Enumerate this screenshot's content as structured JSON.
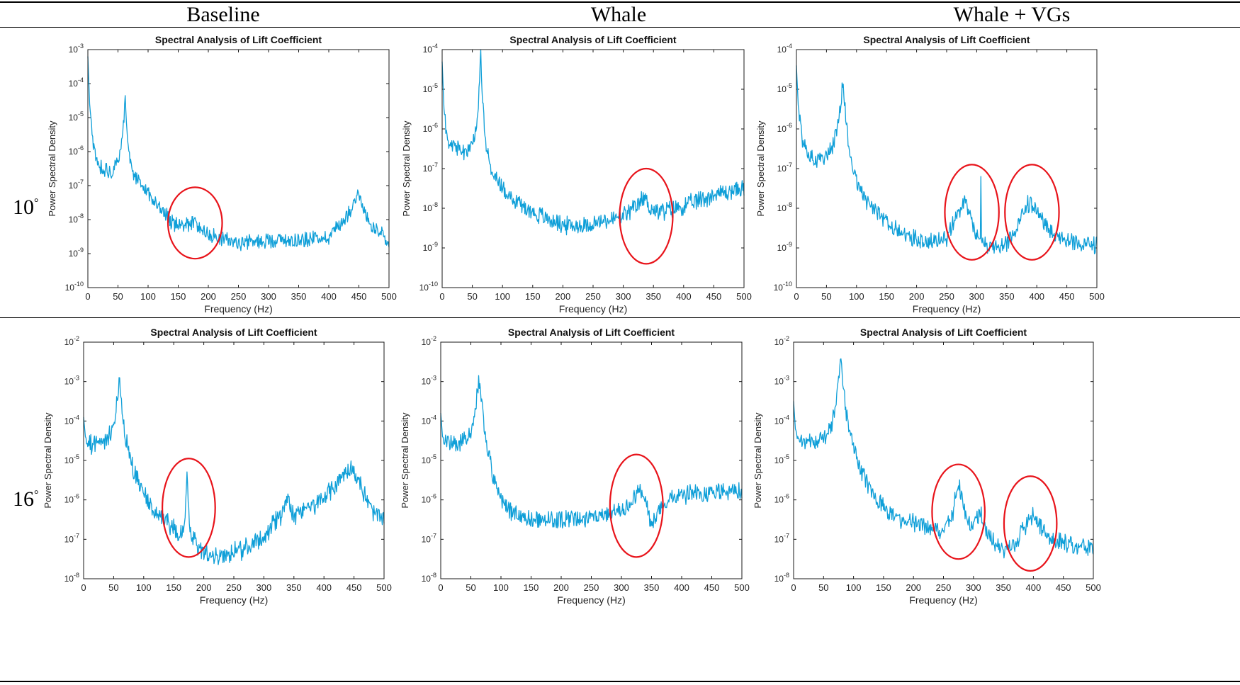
{
  "columns": [
    "Baseline",
    "Whale",
    "Whale + VGs"
  ],
  "rows": [
    "10",
    "16"
  ],
  "degree_symbol": "°",
  "colors": {
    "series": "#0f9fd8",
    "highlight": "#e8141b",
    "axes": "#1a1a1a"
  },
  "chart_data": [
    {
      "type": "line",
      "panel": "10deg-baseline",
      "title": "Spectral Analysis of Lift Coefficient",
      "xlabel": "Frequency (Hz)",
      "ylabel": "Power Spectral Density",
      "xlim": [
        0,
        500
      ],
      "ylim_exp": [
        -10,
        -3
      ],
      "yscale": "log",
      "xticks": [
        0,
        50,
        100,
        150,
        200,
        250,
        300,
        350,
        400,
        450,
        500
      ],
      "series_name": "PSD",
      "profile_log10": [
        [
          0,
          -3.2
        ],
        [
          3,
          -4.6
        ],
        [
          8,
          -5.7
        ],
        [
          15,
          -6.3
        ],
        [
          25,
          -6.5
        ],
        [
          40,
          -6.6
        ],
        [
          52,
          -6.3
        ],
        [
          57,
          -5.6
        ],
        [
          60,
          -5.0
        ],
        [
          62,
          -4.3
        ],
        [
          64,
          -5.0
        ],
        [
          67,
          -5.8
        ],
        [
          72,
          -6.5
        ],
        [
          85,
          -6.9
        ],
        [
          100,
          -7.2
        ],
        [
          120,
          -7.7
        ],
        [
          140,
          -8.1
        ],
        [
          160,
          -8.2
        ],
        [
          175,
          -8.1
        ],
        [
          190,
          -8.3
        ],
        [
          210,
          -8.5
        ],
        [
          250,
          -8.7
        ],
        [
          300,
          -8.6
        ],
        [
          350,
          -8.6
        ],
        [
          400,
          -8.5
        ],
        [
          425,
          -8.0
        ],
        [
          440,
          -7.6
        ],
        [
          448,
          -7.1
        ],
        [
          455,
          -7.6
        ],
        [
          470,
          -8.2
        ],
        [
          490,
          -8.5
        ],
        [
          500,
          -8.8
        ]
      ],
      "noise": 0.2,
      "seed": 11,
      "highlights": [
        {
          "f": 178,
          "exp": -8.1,
          "rf": 45,
          "rexp": 1.05
        }
      ]
    },
    {
      "type": "line",
      "panel": "10deg-whale",
      "title": "Spectral Analysis of Lift Coefficient",
      "xlabel": "Frequency (Hz)",
      "ylabel": "Power Spectral Density",
      "xlim": [
        0,
        500
      ],
      "ylim_exp": [
        -10,
        -4
      ],
      "yscale": "log",
      "xticks": [
        0,
        50,
        100,
        150,
        200,
        250,
        300,
        350,
        400,
        450,
        500
      ],
      "series_name": "PSD",
      "profile_log10": [
        [
          0,
          -4.3
        ],
        [
          3,
          -5.5
        ],
        [
          8,
          -6.2
        ],
        [
          15,
          -6.4
        ],
        [
          30,
          -6.6
        ],
        [
          45,
          -6.5
        ],
        [
          55,
          -6.2
        ],
        [
          60,
          -5.4
        ],
        [
          64,
          -4.1
        ],
        [
          67,
          -5.3
        ],
        [
          72,
          -6.3
        ],
        [
          80,
          -7.0
        ],
        [
          95,
          -7.4
        ],
        [
          120,
          -7.8
        ],
        [
          150,
          -8.1
        ],
        [
          180,
          -8.3
        ],
        [
          210,
          -8.45
        ],
        [
          250,
          -8.4
        ],
        [
          300,
          -8.2
        ],
        [
          320,
          -8.0
        ],
        [
          335,
          -7.7
        ],
        [
          345,
          -8.0
        ],
        [
          360,
          -8.1
        ],
        [
          400,
          -7.95
        ],
        [
          450,
          -7.65
        ],
        [
          500,
          -7.5
        ]
      ],
      "noise": 0.2,
      "seed": 23,
      "highlights": [
        {
          "f": 338,
          "exp": -8.2,
          "rf": 44,
          "rexp": 1.2
        }
      ]
    },
    {
      "type": "line",
      "panel": "10deg-whale-vgs",
      "title": "Spectral Analysis of Lift Coefficient",
      "xlabel": "Frequency (Hz)",
      "ylabel": "Power Spectral Density",
      "xlim": [
        0,
        500
      ],
      "ylim_exp": [
        -10,
        -4
      ],
      "yscale": "log",
      "xticks": [
        0,
        50,
        100,
        150,
        200,
        250,
        300,
        350,
        400,
        450,
        500
      ],
      "series_name": "PSD",
      "profile_log10": [
        [
          0,
          -4.4
        ],
        [
          3,
          -5.4
        ],
        [
          10,
          -6.3
        ],
        [
          20,
          -6.7
        ],
        [
          40,
          -6.8
        ],
        [
          55,
          -6.6
        ],
        [
          65,
          -6.2
        ],
        [
          72,
          -5.6
        ],
        [
          77,
          -4.8
        ],
        [
          80,
          -5.3
        ],
        [
          84,
          -6.0
        ],
        [
          92,
          -6.9
        ],
        [
          100,
          -7.3
        ],
        [
          120,
          -7.9
        ],
        [
          150,
          -8.4
        ],
        [
          180,
          -8.7
        ],
        [
          220,
          -8.85
        ],
        [
          250,
          -8.8
        ],
        [
          270,
          -8.1
        ],
        [
          280,
          -7.8
        ],
        [
          292,
          -8.4
        ],
        [
          305,
          -8.9
        ],
        [
          330,
          -9.0
        ],
        [
          350,
          -8.95
        ],
        [
          370,
          -8.4
        ],
        [
          385,
          -7.9
        ],
        [
          395,
          -8.0
        ],
        [
          410,
          -8.3
        ],
        [
          430,
          -8.7
        ],
        [
          460,
          -8.9
        ],
        [
          500,
          -8.95
        ]
      ],
      "noise": 0.2,
      "seed": 37,
      "spikes": [
        {
          "f": 307,
          "exp": -7.2
        }
      ],
      "highlights": [
        {
          "f": 292,
          "exp": -8.1,
          "rf": 45,
          "rexp": 1.2
        },
        {
          "f": 392,
          "exp": -8.1,
          "rf": 45,
          "rexp": 1.2
        }
      ]
    },
    {
      "type": "line",
      "panel": "16deg-baseline",
      "title": "Spectral Analysis of Lift Coefficient",
      "xlabel": "Frequency (Hz)",
      "ylabel": "Power Spectral Density",
      "xlim": [
        0,
        500
      ],
      "ylim_exp": [
        -8,
        -2
      ],
      "yscale": "log",
      "xticks": [
        0,
        50,
        100,
        150,
        200,
        250,
        300,
        350,
        400,
        450,
        500
      ],
      "series_name": "PSD",
      "profile_log10": [
        [
          0,
          -3.9
        ],
        [
          3,
          -4.4
        ],
        [
          10,
          -4.6
        ],
        [
          25,
          -4.55
        ],
        [
          40,
          -4.45
        ],
        [
          50,
          -4.2
        ],
        [
          56,
          -3.5
        ],
        [
          60,
          -2.85
        ],
        [
          63,
          -3.5
        ],
        [
          68,
          -4.3
        ],
        [
          75,
          -4.8
        ],
        [
          85,
          -5.3
        ],
        [
          100,
          -5.9
        ],
        [
          120,
          -6.3
        ],
        [
          140,
          -6.6
        ],
        [
          160,
          -6.9
        ],
        [
          168,
          -6.6
        ],
        [
          172,
          -5.3
        ],
        [
          176,
          -6.7
        ],
        [
          190,
          -7.2
        ],
        [
          220,
          -7.45
        ],
        [
          260,
          -7.3
        ],
        [
          300,
          -6.9
        ],
        [
          330,
          -6.35
        ],
        [
          340,
          -6.0
        ],
        [
          350,
          -6.4
        ],
        [
          380,
          -6.2
        ],
        [
          410,
          -5.8
        ],
        [
          430,
          -5.4
        ],
        [
          445,
          -5.15
        ],
        [
          460,
          -5.6
        ],
        [
          480,
          -6.3
        ],
        [
          500,
          -6.5
        ]
      ],
      "noise": 0.22,
      "seed": 41,
      "highlights": [
        {
          "f": 175,
          "exp": -6.2,
          "rf": 44,
          "rexp": 1.25
        }
      ]
    },
    {
      "type": "line",
      "panel": "16deg-whale",
      "title": "Spectral Analysis of Lift Coefficient",
      "xlabel": "Frequency (Hz)",
      "ylabel": "Power Spectral Density",
      "xlim": [
        0,
        500
      ],
      "ylim_exp": [
        -8,
        -2
      ],
      "yscale": "log",
      "xticks": [
        0,
        50,
        100,
        150,
        200,
        250,
        300,
        350,
        400,
        450,
        500
      ],
      "series_name": "PSD",
      "profile_log10": [
        [
          0,
          -3.8
        ],
        [
          3,
          -4.4
        ],
        [
          10,
          -4.5
        ],
        [
          30,
          -4.55
        ],
        [
          45,
          -4.5
        ],
        [
          55,
          -4.0
        ],
        [
          60,
          -3.3
        ],
        [
          64,
          -2.95
        ],
        [
          68,
          -3.5
        ],
        [
          75,
          -4.5
        ],
        [
          85,
          -5.3
        ],
        [
          100,
          -6.0
        ],
        [
          120,
          -6.35
        ],
        [
          150,
          -6.5
        ],
        [
          200,
          -6.5
        ],
        [
          250,
          -6.45
        ],
        [
          280,
          -6.3
        ],
        [
          300,
          -6.35
        ],
        [
          320,
          -6.0
        ],
        [
          330,
          -5.7
        ],
        [
          340,
          -6.1
        ],
        [
          350,
          -6.6
        ],
        [
          360,
          -6.3
        ],
        [
          380,
          -5.95
        ],
        [
          420,
          -5.85
        ],
        [
          460,
          -5.8
        ],
        [
          500,
          -5.8
        ]
      ],
      "noise": 0.2,
      "seed": 53,
      "highlights": [
        {
          "f": 325,
          "exp": -6.15,
          "rf": 44,
          "rexp": 1.3
        }
      ]
    },
    {
      "type": "line",
      "panel": "16deg-whale-vgs",
      "title": "Spectral Analysis of Lift Coefficient",
      "xlabel": "Frequency (Hz)",
      "ylabel": "Power Spectral Density",
      "xlim": [
        0,
        500
      ],
      "ylim_exp": [
        -8,
        -2
      ],
      "yscale": "log",
      "xticks": [
        0,
        50,
        100,
        150,
        200,
        250,
        300,
        350,
        400,
        450,
        500
      ],
      "series_name": "PSD",
      "profile_log10": [
        [
          0,
          -3.5
        ],
        [
          3,
          -4.2
        ],
        [
          10,
          -4.5
        ],
        [
          30,
          -4.55
        ],
        [
          50,
          -4.4
        ],
        [
          62,
          -4.2
        ],
        [
          70,
          -3.7
        ],
        [
          75,
          -2.9
        ],
        [
          78,
          -2.4
        ],
        [
          81,
          -2.9
        ],
        [
          86,
          -3.6
        ],
        [
          95,
          -4.4
        ],
        [
          110,
          -5.2
        ],
        [
          130,
          -5.8
        ],
        [
          150,
          -6.2
        ],
        [
          180,
          -6.5
        ],
        [
          220,
          -6.7
        ],
        [
          250,
          -6.75
        ],
        [
          265,
          -6.4
        ],
        [
          275,
          -5.5
        ],
        [
          283,
          -6.2
        ],
        [
          295,
          -6.7
        ],
        [
          310,
          -6.3
        ],
        [
          325,
          -6.9
        ],
        [
          350,
          -7.3
        ],
        [
          370,
          -7.1
        ],
        [
          390,
          -6.6
        ],
        [
          400,
          -6.35
        ],
        [
          415,
          -6.8
        ],
        [
          440,
          -7.05
        ],
        [
          470,
          -7.15
        ],
        [
          500,
          -7.25
        ]
      ],
      "noise": 0.2,
      "seed": 67,
      "highlights": [
        {
          "f": 275,
          "exp": -6.3,
          "rf": 44,
          "rexp": 1.2
        },
        {
          "f": 395,
          "exp": -6.6,
          "rf": 44,
          "rexp": 1.2
        }
      ]
    }
  ]
}
